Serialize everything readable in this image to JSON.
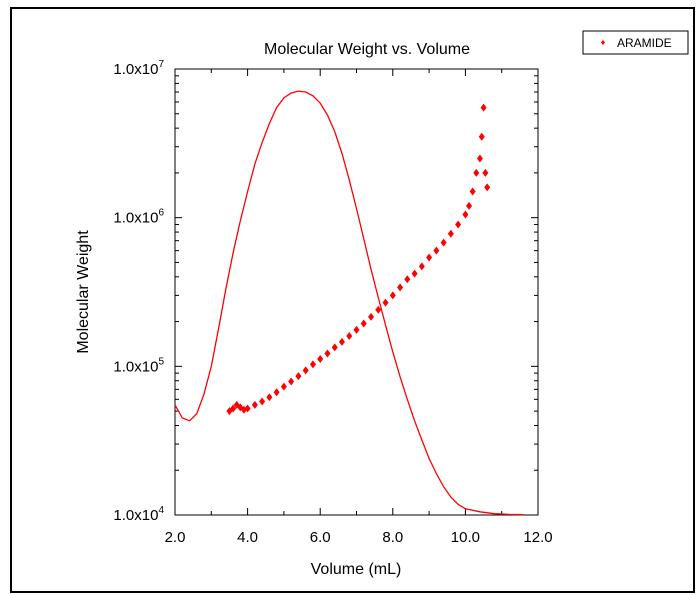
{
  "chart_data": {
    "type": "scatter",
    "title": "Molecular Weight vs. Volume",
    "xlabel": "Volume (mL)",
    "ylabel": "Molecular Weight",
    "xlim": [
      2.0,
      12.0
    ],
    "ylim": [
      10000,
      10000000
    ],
    "yscale": "log",
    "grid": false,
    "legend_position": "top-right",
    "x_ticks": [
      "2.0",
      "4.0",
      "6.0",
      "8.0",
      "10.0",
      "12.0"
    ],
    "y_ticks": [
      {
        "value": 10000,
        "base": "1.0x10",
        "exp": "4"
      },
      {
        "value": 100000,
        "base": "1.0x10",
        "exp": "5"
      },
      {
        "value": 1000000,
        "base": "1.0x10",
        "exp": "6"
      },
      {
        "value": 10000000,
        "base": "1.0x10",
        "exp": "7"
      }
    ],
    "series": [
      {
        "name": "ARAMIDE",
        "color": "#ff0000",
        "marker": "diamond",
        "x": [
          3.5,
          3.6,
          3.7,
          3.8,
          3.9,
          4.0,
          4.2,
          4.4,
          4.6,
          4.8,
          5.0,
          5.2,
          5.4,
          5.6,
          5.8,
          6.0,
          6.2,
          6.4,
          6.6,
          6.8,
          7.0,
          7.2,
          7.4,
          7.6,
          7.8,
          8.0,
          8.2,
          8.4,
          8.6,
          8.8,
          9.0,
          9.2,
          9.4,
          9.6,
          9.8,
          10.0,
          10.1,
          10.2,
          10.3,
          10.4,
          10.45,
          10.5,
          10.55,
          10.6
        ],
        "y": [
          50000,
          52000,
          55000,
          53000,
          51000,
          52000,
          55000,
          58000,
          62000,
          67000,
          73000,
          79000,
          86000,
          94000,
          103000,
          112000,
          122000,
          134000,
          146000,
          160000,
          176000,
          194000,
          215000,
          240000,
          268000,
          300000,
          340000,
          385000,
          420000,
          470000,
          540000,
          600000,
          680000,
          780000,
          900000,
          1050000,
          1200000,
          1500000,
          2000000,
          2500000,
          3500000,
          5500000,
          2000000,
          1600000
        ]
      },
      {
        "name": "",
        "color": "#ff0000",
        "marker": "line",
        "x": [
          2.0,
          2.2,
          2.4,
          2.6,
          2.8,
          3.0,
          3.2,
          3.4,
          3.6,
          3.8,
          4.0,
          4.2,
          4.4,
          4.6,
          4.8,
          5.0,
          5.2,
          5.4,
          5.6,
          5.8,
          6.0,
          6.2,
          6.4,
          6.6,
          6.8,
          7.0,
          7.2,
          7.4,
          7.6,
          7.8,
          8.0,
          8.2,
          8.4,
          8.6,
          8.8,
          9.0,
          9.2,
          9.4,
          9.6,
          9.8,
          10.0,
          10.4,
          10.8,
          11.2,
          11.6
        ],
        "y": [
          55000,
          45000,
          43000,
          48000,
          65000,
          100000,
          180000,
          330000,
          580000,
          950000,
          1500000,
          2300000,
          3200000,
          4300000,
          5500000,
          6400000,
          6900000,
          7100000,
          7000000,
          6600000,
          5900000,
          4900000,
          3800000,
          2700000,
          1800000,
          1150000,
          720000,
          450000,
          290000,
          190000,
          125000,
          85000,
          60000,
          43000,
          32000,
          24000,
          19000,
          15500,
          13200,
          11800,
          11000,
          10500,
          10200,
          10100,
          10050
        ]
      }
    ]
  }
}
